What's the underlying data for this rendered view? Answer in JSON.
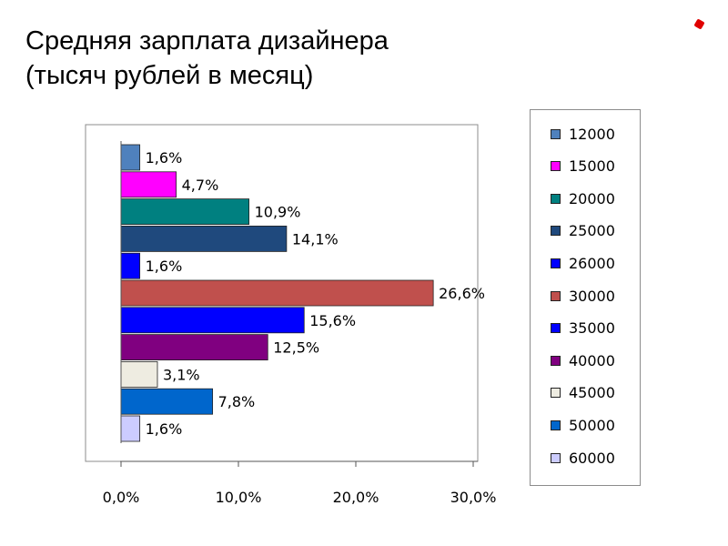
{
  "title": {
    "line1": "Средняя зарплата дизайнера",
    "line2": "(тысяч рублей в месяц)"
  },
  "chart_data": {
    "type": "bar",
    "orientation": "horizontal",
    "categories": [
      "12000",
      "15000",
      "20000",
      "25000",
      "26000",
      "30000",
      "35000",
      "40000",
      "45000",
      "50000",
      "60000"
    ],
    "values": [
      1.6,
      4.7,
      10.9,
      14.1,
      1.6,
      26.6,
      15.6,
      12.5,
      3.1,
      7.8,
      1.6
    ],
    "data_labels": [
      "1,6%",
      "4,7%",
      "10,9%",
      "14,1%",
      "1,6%",
      "26,6%",
      "15,6%",
      "12,5%",
      "3,1%",
      "7,8%",
      "1,6%"
    ],
    "colors": [
      "#4f81bd",
      "#ff00ff",
      "#008080",
      "#1f497d",
      "#0000ff",
      "#c0504d",
      "#0000ff",
      "#800080",
      "#eeece1",
      "#0066cc",
      "#ccccff"
    ],
    "xlim": [
      0,
      30
    ],
    "xticks": [
      0,
      10,
      20,
      30
    ],
    "xtick_labels": [
      "0,0%",
      "10,0%",
      "20,0%",
      "30,0%"
    ],
    "legend": "right",
    "grid": false
  }
}
